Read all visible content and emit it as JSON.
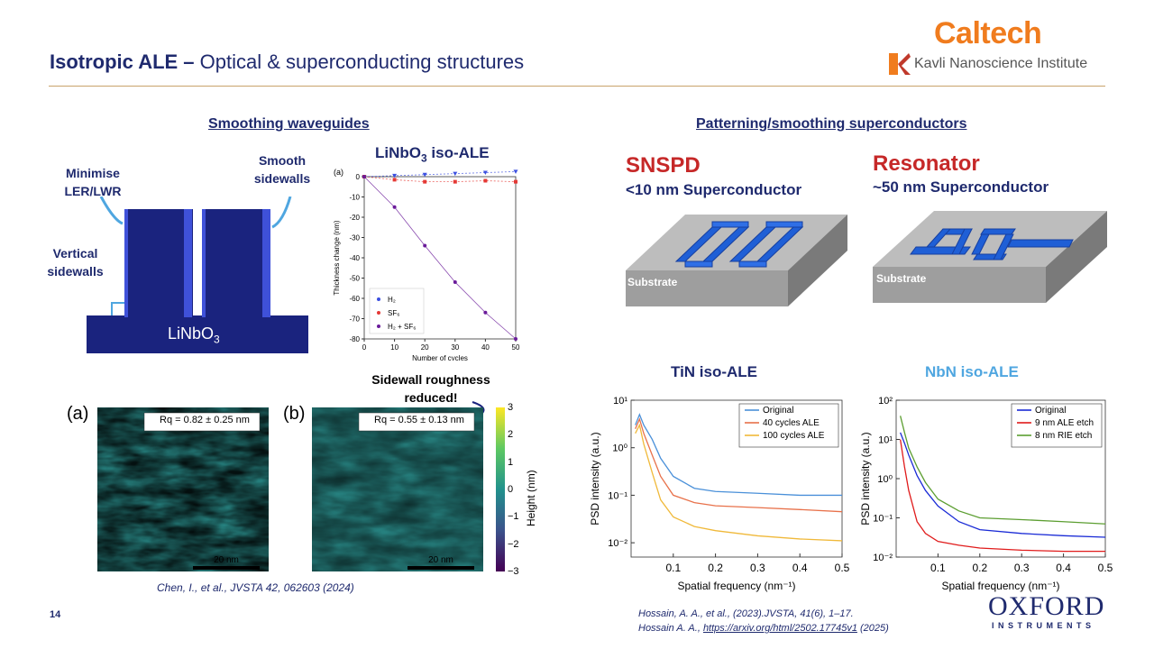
{
  "header": {
    "title_bold": "Isotropic ALE –",
    "title_rest": " Optical & superconducting structures",
    "logo_caltech": "Caltech",
    "logo_kavli": "Kavli Nanoscience Institute"
  },
  "left": {
    "heading": "Smoothing waveguides",
    "label_ler": "Minimise LER/LWR",
    "label_smooth": "Smooth sidewalls",
    "label_vertical": "Vertical sidewalls",
    "substrate_label": "LiNbO",
    "substrate_sub": "3",
    "chart_title_prefix": "LiNbO",
    "chart_title_sub": "3",
    "chart_title_suffix": " iso-ALE",
    "roughness_note": "Sidewall roughness reduced!",
    "afm_a_label": "(a)",
    "afm_b_label": "(b)",
    "afm_a_rq": "Rq = 0.82 ± 0.25 nm",
    "afm_b_rq": "Rq = 0.55 ± 0.13 nm",
    "scalebar": "20 nm",
    "colorbar_label": "Height (nm)",
    "colorbar_ticks": [
      "3",
      "2",
      "1",
      "0",
      "−1",
      "−2",
      "−3"
    ],
    "reference": "Chen, I., et al., JVSTA 42, 062603 (2024)"
  },
  "right": {
    "heading": "Patterning/smoothing superconductors",
    "snspd_title": "SNSPD",
    "snspd_sub": "<10 nm Superconductor",
    "resonator_title": "Resonator",
    "resonator_sub": "~50 nm Superconductor",
    "substrate_label": "Substrate",
    "tin_title": "TiN iso-ALE",
    "nbn_title": "NbN iso-ALE",
    "ref_1": "Hossain, A. A., et al., (2023).JVSTA, 41(6), 1–17.",
    "ref_2_prefix": "Hossain A. A., ",
    "ref_2_link": "https://arxiv.org/html/2502.17745v1",
    "ref_2_suffix": " (2025)"
  },
  "footer": {
    "page_number": "14",
    "oxford_1": "OXFORD",
    "oxford_2": "INSTRUMENTS"
  },
  "colors": {
    "navy": "#1f2a6e",
    "waveguide": "#1a237e",
    "sidewall": "#3f51d9",
    "accent_red": "#c62828",
    "nbn_title": "#4fa6e0",
    "caltech_orange": "#f07c1e"
  },
  "chart_data": [
    {
      "type": "line",
      "panel": "(a)",
      "xlabel": "Number of cycles",
      "ylabel": "Thickness change (nm)",
      "xlim": [
        0,
        50
      ],
      "ylim": [
        -80,
        0
      ],
      "x_ticks": [
        0,
        10,
        20,
        30,
        40,
        50
      ],
      "y_ticks": [
        0,
        -10,
        -20,
        -30,
        -40,
        -50,
        -60,
        -70,
        -80
      ],
      "legend": "bottom-left",
      "x": [
        0,
        10,
        20,
        30,
        40,
        50
      ],
      "series": [
        {
          "name": "H₂",
          "values": [
            0,
            0.5,
            1,
            1.5,
            2,
            2.5
          ],
          "color": "#3b4fe0",
          "marker": "triangle"
        },
        {
          "name": "SF₆",
          "values": [
            0,
            -1.5,
            -2.5,
            -2.5,
            -2,
            -2.5
          ],
          "color": "#e53935",
          "marker": "square"
        },
        {
          "name": "H₂ + SF₆",
          "values": [
            0,
            -15,
            -34,
            -52,
            -67,
            -80
          ],
          "color": "#6a1b9a",
          "marker": "circle"
        }
      ]
    },
    {
      "type": "line",
      "title": "TiN iso-ALE",
      "xlabel": "Spatial frequency (nm⁻¹)",
      "ylabel": "PSD intensity (a.u.)",
      "log_y": true,
      "xlim": [
        0,
        0.5
      ],
      "ylim": [
        0.005,
        10
      ],
      "x_ticks": [
        0.1,
        0.2,
        0.3,
        0.4,
        0.5
      ],
      "y_tick_labels": [
        "10¹",
        "10⁰",
        "10⁻¹",
        "10⁻²"
      ],
      "legend": "top-right",
      "x": [
        0.01,
        0.02,
        0.03,
        0.05,
        0.07,
        0.1,
        0.15,
        0.2,
        0.3,
        0.4,
        0.5
      ],
      "series": [
        {
          "name": "Original",
          "values": [
            3,
            5,
            3,
            1.5,
            0.6,
            0.25,
            0.14,
            0.12,
            0.11,
            0.1,
            0.1
          ],
          "color": "#4a90d9"
        },
        {
          "name": "40 cycles ALE",
          "values": [
            2.5,
            4,
            2,
            0.7,
            0.25,
            0.1,
            0.07,
            0.06,
            0.055,
            0.05,
            0.045
          ],
          "color": "#e8714a"
        },
        {
          "name": "100 cycles ALE",
          "values": [
            2,
            3,
            1.2,
            0.3,
            0.08,
            0.035,
            0.022,
            0.018,
            0.014,
            0.012,
            0.011
          ],
          "color": "#f0b93a"
        }
      ]
    },
    {
      "type": "line",
      "title": "NbN iso-ALE",
      "xlabel": "Spatial frequency (nm⁻¹)",
      "ylabel": "PSD intensity (a.u.)",
      "log_y": true,
      "xlim": [
        0,
        0.5
      ],
      "ylim": [
        0.01,
        100
      ],
      "x_ticks": [
        0.1,
        0.2,
        0.3,
        0.4,
        0.5
      ],
      "y_tick_labels": [
        "10²",
        "10¹",
        "10⁰",
        "10⁻¹",
        "10⁻²"
      ],
      "legend": "top-right",
      "x": [
        0.01,
        0.02,
        0.03,
        0.05,
        0.07,
        0.1,
        0.15,
        0.2,
        0.3,
        0.4,
        0.5
      ],
      "series": [
        {
          "name": "Original",
          "values": [
            15,
            8,
            4,
            1.2,
            0.5,
            0.2,
            0.08,
            0.05,
            0.04,
            0.035,
            0.032
          ],
          "color": "#1a2bd6"
        },
        {
          "name": "9 nm ALE etch",
          "values": [
            10,
            2,
            0.5,
            0.08,
            0.04,
            0.025,
            0.02,
            0.017,
            0.015,
            0.014,
            0.014
          ],
          "color": "#e01b1b"
        },
        {
          "name": "8 nm RIE etch",
          "values": [
            40,
            15,
            6,
            2,
            0.8,
            0.3,
            0.15,
            0.1,
            0.09,
            0.08,
            0.07
          ],
          "color": "#5c9e31"
        }
      ]
    }
  ]
}
